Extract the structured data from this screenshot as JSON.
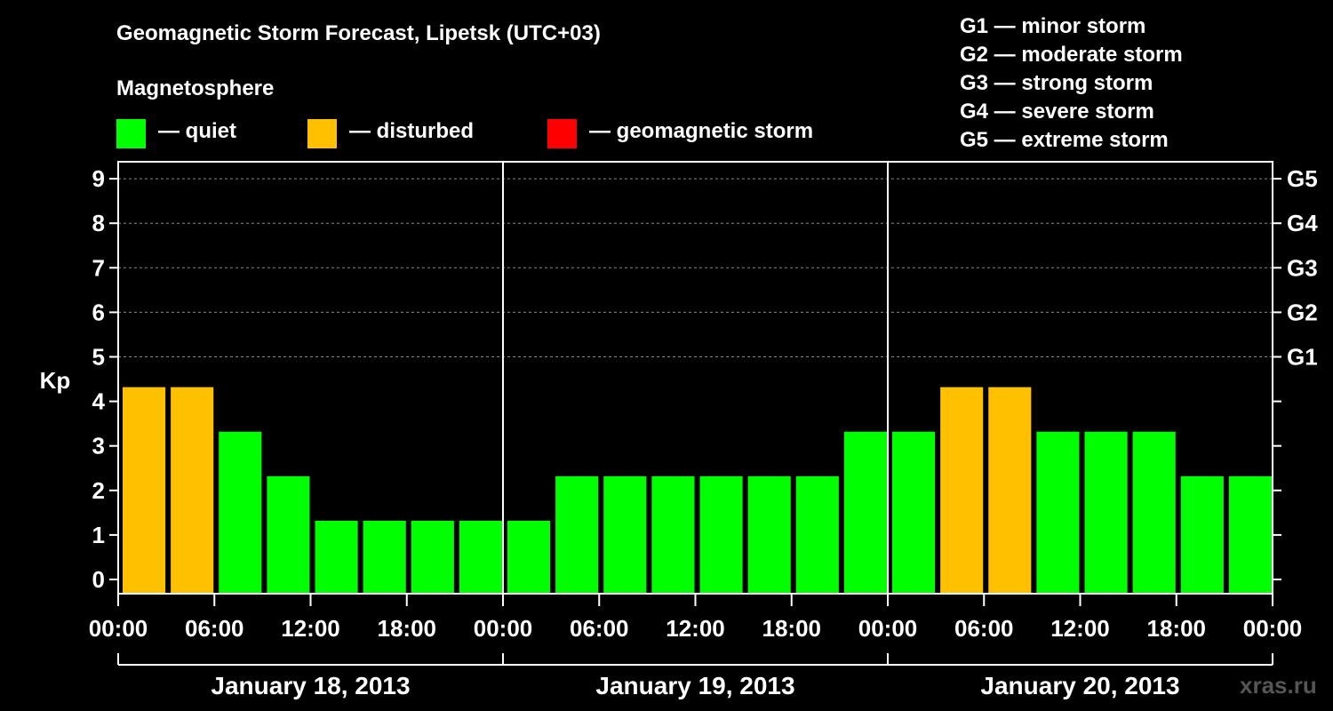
{
  "chart_data": {
    "type": "bar",
    "title": "Geomagnetic Storm Forecast, Lipetsk (UTC+03)",
    "ylabel": "Kp",
    "ylim": [
      0,
      9
    ],
    "y_ticks": [
      "0",
      "1",
      "2",
      "3",
      "4",
      "5",
      "6",
      "7",
      "8",
      "9"
    ],
    "right_ticks": [
      {
        "kp": 5,
        "label": "G1"
      },
      {
        "kp": 6,
        "label": "G2"
      },
      {
        "kp": 7,
        "label": "G3"
      },
      {
        "kp": 8,
        "label": "G4"
      },
      {
        "kp": 9,
        "label": "G5"
      }
    ],
    "x_tick_labels": [
      "00:00",
      "06:00",
      "12:00",
      "18:00",
      "00:00",
      "06:00",
      "12:00",
      "18:00",
      "00:00",
      "06:00",
      "12:00",
      "18:00",
      "00:00"
    ],
    "days": [
      "January 18, 2013",
      "January 19, 2013",
      "January 20, 2013"
    ],
    "values": [
      4,
      4,
      3,
      2,
      1,
      1,
      1,
      1,
      1,
      2,
      2,
      2,
      2,
      2,
      2,
      3,
      3,
      4,
      4,
      3,
      3,
      3,
      2,
      2
    ],
    "categories_status": [
      "disturbed",
      "disturbed",
      "quiet",
      "quiet",
      "quiet",
      "quiet",
      "quiet",
      "quiet",
      "quiet",
      "quiet",
      "quiet",
      "quiet",
      "quiet",
      "quiet",
      "quiet",
      "quiet",
      "quiet",
      "disturbed",
      "disturbed",
      "quiet",
      "quiet",
      "quiet",
      "quiet",
      "quiet"
    ],
    "grid": true
  },
  "legend": {
    "title": "Magnetosphere",
    "items": [
      {
        "label": "— quiet",
        "color": "#00ff00"
      },
      {
        "label": "— disturbed",
        "color": "#ffc000"
      },
      {
        "label": "— geomagnetic storm",
        "color": "#ff0000"
      }
    ]
  },
  "storm_scale": [
    "G1 — minor storm",
    "G2 — moderate storm",
    "G3 — strong storm",
    "G4 — severe storm",
    "G5 — extreme storm"
  ],
  "watermark": "xras.ru"
}
